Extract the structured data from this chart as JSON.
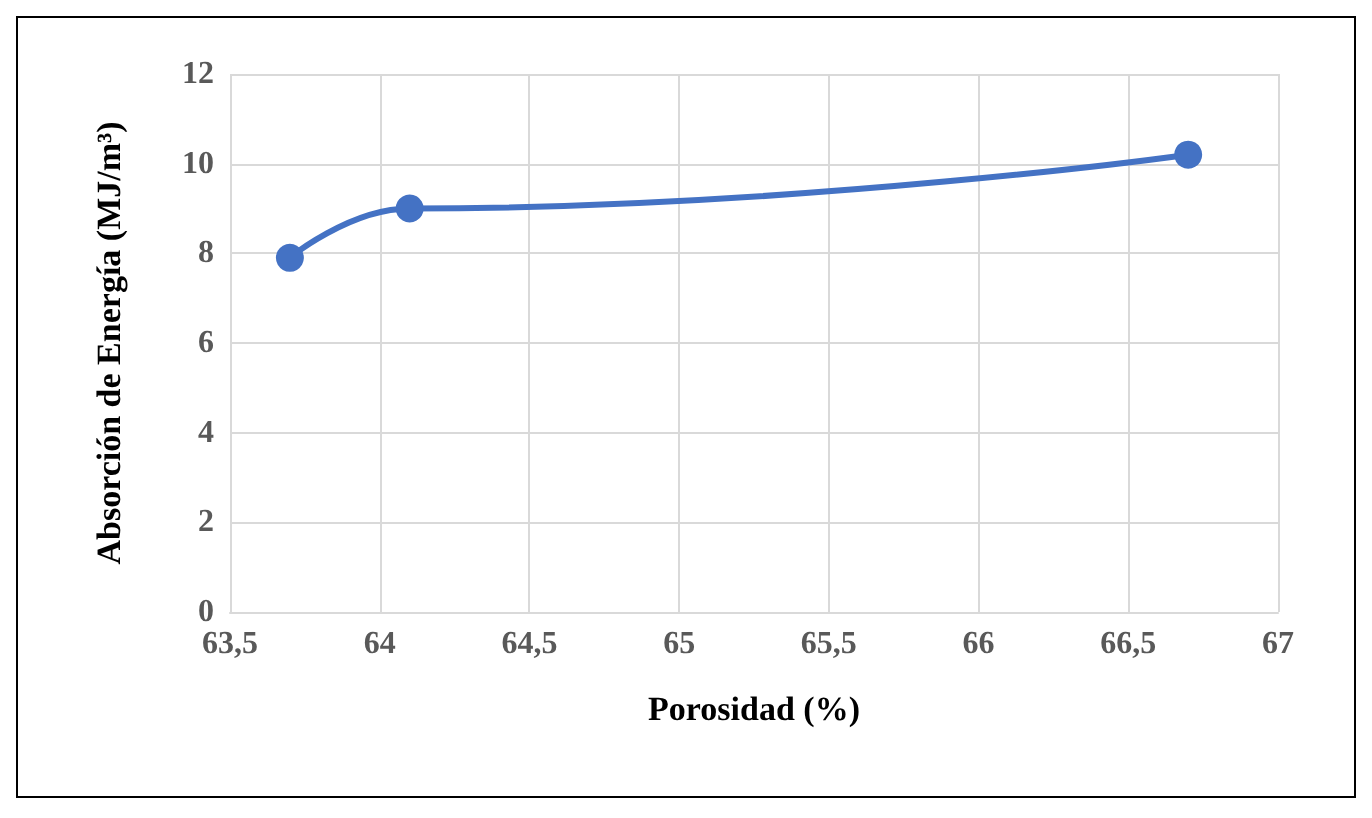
{
  "chart_data": {
    "type": "line",
    "xlabel": "Porosidad (%)",
    "ylabel": "Absorción de Energía (MJ/m³)",
    "x": [
      63.7,
      64.1,
      66.7
    ],
    "series": [
      {
        "color": "#4472c4",
        "values": [
          7.9,
          9.0,
          10.2
        ]
      }
    ],
    "xlim": [
      63.5,
      67
    ],
    "xticks": [
      {
        "value": 63.5,
        "label": "63,5"
      },
      64,
      {
        "value": 64.5,
        "label": "64,5"
      },
      65,
      {
        "value": 65.5,
        "label": "65,5"
      },
      66,
      {
        "value": 66.5,
        "label": "66,5"
      },
      67
    ],
    "ylim": [
      0,
      12
    ],
    "yticks": [
      0,
      2,
      4,
      6,
      8,
      10,
      12
    ],
    "grid": true,
    "marker": "circle",
    "line_style": "solid"
  }
}
